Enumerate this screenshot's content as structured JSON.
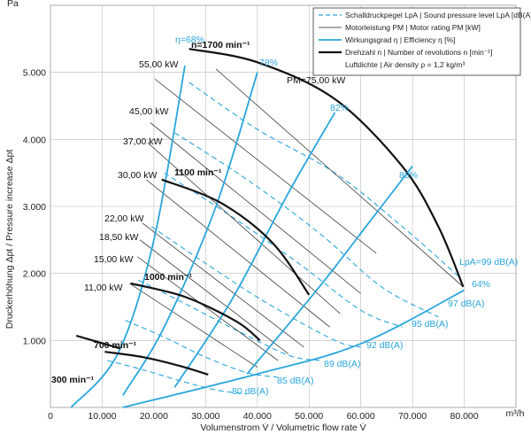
{
  "chart_data": {
    "type": "line",
    "xlabel": "Volumenstrom V̇ / Volumetric flow rate V̇",
    "ylabel": "Druckerhöhung Δpt / Pressure increase Δpt",
    "x_unit": "m³/h",
    "y_unit": "Pa",
    "xlim": [
      0,
      90000
    ],
    "ylim": [
      0,
      6000
    ],
    "x_ticks": [
      {
        "v": 0,
        "label": "0"
      },
      {
        "v": 10000,
        "label": "10.000"
      },
      {
        "v": 20000,
        "label": "20.000"
      },
      {
        "v": 30000,
        "label": "30.000"
      },
      {
        "v": 40000,
        "label": "40.000"
      },
      {
        "v": 50000,
        "label": "50.000"
      },
      {
        "v": 60000,
        "label": "60.000"
      },
      {
        "v": 70000,
        "label": "70.000"
      },
      {
        "v": 80000,
        "label": "80.000"
      }
    ],
    "y_ticks": [
      {
        "v": 1000,
        "label": "1.000"
      },
      {
        "v": 2000,
        "label": "2.000"
      },
      {
        "v": 3000,
        "label": "3.000"
      },
      {
        "v": 4000,
        "label": "4.000"
      },
      {
        "v": 5000,
        "label": "5.000"
      }
    ],
    "legend": {
      "placement": "top-right",
      "entries": [
        {
          "style": "dashed-blue",
          "text": "Schalldruckpegel LpA | Sound pressure level LpA [dB(A)]"
        },
        {
          "style": "thin-black",
          "text": "Motorleistung PM | Motor rating PM [kW]"
        },
        {
          "style": "blue",
          "text": "Wirkungsgrad η | Efficiency η [%]"
        },
        {
          "style": "bold-black",
          "text": "Drehzahl n | Number of revolutions n [min⁻¹]"
        },
        {
          "style": "none",
          "text": "Luftdichte | Air density ρ = 1,2 kg/m³"
        }
      ]
    },
    "speed_curves": [
      {
        "label": "300 min⁻¹",
        "points": [
          [
            5000,
            1070
          ],
          [
            13500,
            880
          ]
        ]
      },
      {
        "label": "700 min⁻¹",
        "points": [
          [
            10500,
            830
          ],
          [
            18000,
            750
          ],
          [
            25000,
            620
          ],
          [
            30500,
            490
          ]
        ]
      },
      {
        "label": "1000 min⁻¹",
        "points": [
          [
            15500,
            1850
          ],
          [
            26000,
            1650
          ],
          [
            36000,
            1280
          ],
          [
            40500,
            1000
          ]
        ]
      },
      {
        "label": "1100 min⁻¹",
        "points": [
          [
            21500,
            3400
          ],
          [
            33000,
            3050
          ],
          [
            43000,
            2450
          ],
          [
            50000,
            1680
          ]
        ]
      },
      {
        "label": "n=1700 min⁻¹",
        "points": [
          [
            26800,
            5350
          ],
          [
            40000,
            5150
          ],
          [
            55000,
            4600
          ],
          [
            68000,
            3600
          ],
          [
            75000,
            2700
          ],
          [
            79800,
            1800
          ]
        ]
      }
    ],
    "efficiency_curves": [
      {
        "label": "η=68%",
        "points": [
          [
            4000,
            0
          ],
          [
            13000,
            800
          ],
          [
            20000,
            2500
          ],
          [
            26000,
            5100
          ]
        ]
      },
      {
        "label": "78%",
        "points": [
          [
            14000,
            180
          ],
          [
            22000,
            1200
          ],
          [
            32000,
            3000
          ],
          [
            40000,
            5000
          ]
        ]
      },
      {
        "label": "82%",
        "points": [
          [
            24000,
            300
          ],
          [
            35000,
            1600
          ],
          [
            46000,
            3200
          ],
          [
            55000,
            4400
          ]
        ]
      },
      {
        "label": "83%",
        "points": [
          [
            38000,
            500
          ],
          [
            52000,
            1800
          ],
          [
            62000,
            2800
          ],
          [
            70000,
            3600
          ]
        ]
      },
      {
        "label": "64%",
        "points": [
          [
            14000,
            0
          ],
          [
            40000,
            500
          ],
          [
            60000,
            950
          ],
          [
            80000,
            1750
          ]
        ]
      }
    ],
    "power_lines": [
      {
        "label": "55,00 kW",
        "start": [
          20200,
          4900
        ],
        "end": [
          63000,
          2300
        ]
      },
      {
        "label": "45,00 kW",
        "start": [
          19300,
          4250
        ],
        "end": [
          60000,
          1700
        ]
      },
      {
        "label": "37,00 kW",
        "start": [
          18800,
          3950
        ],
        "end": [
          56000,
          1400
        ]
      },
      {
        "label": "30,00 kW",
        "start": [
          18500,
          3400
        ],
        "end": [
          54000,
          1200
        ]
      },
      {
        "label": "22,00 kW",
        "start": [
          17800,
          2750
        ],
        "end": [
          49000,
          900
        ]
      },
      {
        "label": "18,50 kW",
        "start": [
          17300,
          2500
        ],
        "end": [
          46000,
          800
        ]
      },
      {
        "label": "15,00 kW",
        "start": [
          16800,
          2250
        ],
        "end": [
          44000,
          700
        ]
      },
      {
        "label": "11,00 kW",
        "start": [
          15300,
          1850
        ],
        "end": [
          40000,
          600
        ]
      },
      {
        "label": "PM=75,00 kW",
        "start": [
          32000,
          5050
        ],
        "end": [
          79800,
          1800
        ]
      }
    ],
    "sound_curves": [
      {
        "label": "99 dB(A)",
        "points": [
          [
            26800,
            4850
          ],
          [
            40000,
            4150
          ],
          [
            55000,
            3500
          ],
          [
            68000,
            2700
          ],
          [
            79000,
            1950
          ]
        ]
      },
      {
        "label": "97 dB(A)",
        "points": [
          [
            24000,
            4100
          ],
          [
            38000,
            3400
          ],
          [
            52000,
            2600
          ],
          [
            64000,
            1800
          ],
          [
            75000,
            1350
          ]
        ]
      },
      {
        "label": "95 dB(A)",
        "points": [
          [
            22000,
            3500
          ],
          [
            35000,
            2850
          ],
          [
            48000,
            2150
          ],
          [
            60000,
            1450
          ],
          [
            68000,
            1200
          ]
        ]
      },
      {
        "label": "92 dB(A)",
        "points": [
          [
            19500,
            2700
          ],
          [
            30000,
            2150
          ],
          [
            42000,
            1550
          ],
          [
            55000,
            1000
          ],
          [
            60000,
            900
          ]
        ]
      },
      {
        "label": "89 dB(A)",
        "points": [
          [
            17000,
            1900
          ],
          [
            26000,
            1550
          ],
          [
            36000,
            1150
          ],
          [
            46000,
            780
          ],
          [
            52000,
            700
          ]
        ]
      },
      {
        "label": "85 dB(A)",
        "points": [
          [
            14500,
            1300
          ],
          [
            22000,
            1050
          ],
          [
            30000,
            750
          ],
          [
            38000,
            520
          ],
          [
            44000,
            450
          ]
        ]
      },
      {
        "label": "80 dB(A)",
        "points": [
          [
            11000,
            700
          ],
          [
            18000,
            560
          ],
          [
            25000,
            400
          ],
          [
            32000,
            260
          ],
          [
            38000,
            200
          ]
        ]
      }
    ],
    "annotations": [
      {
        "text": "Pa"
      },
      {
        "text": "m³/h"
      },
      {
        "text": "LpA=99 dB(A)"
      },
      {
        "text": "97 dB(A)"
      },
      {
        "text": "95 dB(A)"
      },
      {
        "text": "92 dB(A)"
      },
      {
        "text": "89 dB(A)"
      },
      {
        "text": "85 dB(A)"
      },
      {
        "text": "80 dB(A)"
      }
    ]
  }
}
